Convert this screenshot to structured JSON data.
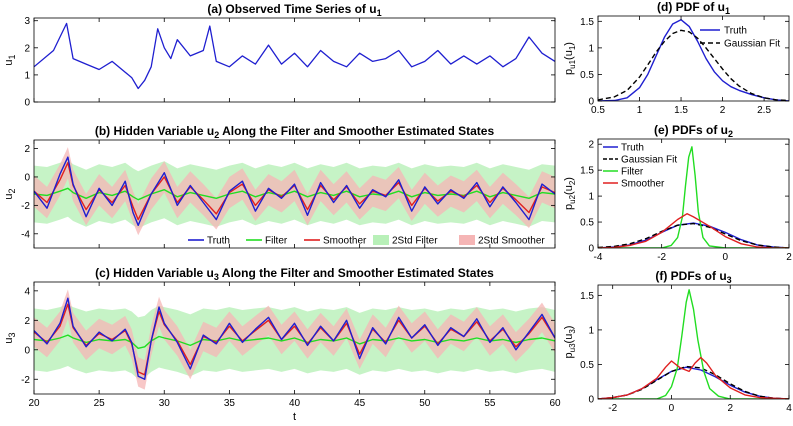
{
  "colors": {
    "truth": "#1f1fd0",
    "filter": "#22dd22",
    "smoother": "#e02020",
    "gauss": "#000000",
    "band_filter": "#b8f0b8",
    "band_smoother": "#f5b5b5"
  },
  "chart_data": [
    {
      "id": "a",
      "type": "line",
      "title": "(a) Observed Time Series of u",
      "title_sub": "1",
      "xlabel": "",
      "ylabel": "u",
      "ylabel_sub": "1",
      "xlim": [
        20,
        60
      ],
      "ylim": [
        0,
        3.1
      ],
      "xticks": [],
      "yticks": [
        0,
        1,
        2,
        3
      ],
      "series": [
        {
          "name": "Truth",
          "color": "#1f1fd0",
          "x": [
            20,
            21.5,
            22,
            22.5,
            23,
            24,
            25,
            26,
            27,
            27.5,
            28,
            28.5,
            29,
            29.5,
            30,
            30.5,
            31,
            32,
            33,
            33.5,
            34,
            35,
            36,
            37,
            38,
            39,
            40,
            41,
            42,
            43,
            44,
            45,
            46,
            47,
            48,
            49,
            50,
            51,
            52,
            53,
            54,
            55,
            56,
            57,
            58,
            59,
            60
          ],
          "y": [
            1.3,
            1.9,
            2.4,
            2.9,
            1.6,
            1.4,
            1.2,
            1.5,
            1.1,
            0.9,
            0.5,
            0.8,
            1.3,
            2.7,
            2.0,
            1.6,
            2.3,
            1.7,
            1.9,
            2.8,
            1.5,
            1.3,
            1.7,
            1.4,
            2.1,
            1.4,
            1.8,
            1.3,
            1.9,
            1.5,
            1.3,
            1.8,
            1.5,
            1.6,
            1.9,
            1.3,
            1.5,
            1.9,
            1.4,
            1.7,
            1.4,
            1.7,
            1.3,
            1.6,
            2.4,
            1.8,
            1.5
          ]
        }
      ]
    },
    {
      "id": "b",
      "type": "line",
      "title": "(b) Hidden Variable u",
      "title_sub": "2",
      "title_rest": " Along the Filter and Smoother Estimated States",
      "xlabel": "",
      "ylabel": "u",
      "ylabel_sub": "2",
      "xlim": [
        20,
        60
      ],
      "ylim": [
        -5,
        2.6
      ],
      "xticks": [],
      "yticks": [
        -4,
        -2,
        0,
        2
      ],
      "legend": [
        "Truth",
        "Filter",
        "Smoother",
        "2Std Filter",
        "2Std Smoother"
      ],
      "x": [
        20,
        21,
        22,
        22.6,
        23,
        24,
        25,
        26,
        27,
        27.6,
        28,
        29,
        30,
        31,
        32,
        33,
        34,
        35,
        36,
        37,
        38,
        39,
        40,
        41,
        42,
        43,
        44,
        45,
        46,
        47,
        48,
        49,
        50,
        51,
        52,
        53,
        54,
        55,
        56,
        57,
        58,
        59,
        60
      ],
      "series": [
        {
          "name": "Truth",
          "color": "#1f1fd0",
          "y": [
            -1.0,
            -2.2,
            0.2,
            1.4,
            -0.5,
            -2.8,
            -0.8,
            -2.0,
            -0.3,
            -2.5,
            -3.4,
            -1.2,
            0.3,
            -2.0,
            -0.6,
            -1.8,
            -3.0,
            -1.0,
            -0.3,
            -2.4,
            -0.8,
            -1.5,
            -0.5,
            -2.7,
            -0.4,
            -1.8,
            -0.6,
            -2.2,
            -0.9,
            -1.4,
            -0.2,
            -2.4,
            -0.7,
            -1.9,
            -0.9,
            -1.5,
            -0.4,
            -2.1,
            -0.7,
            -1.8,
            -3.0,
            -0.5,
            -1.2
          ]
        },
        {
          "name": "Filter",
          "color": "#22dd22",
          "y": [
            -1.2,
            -1.3,
            -1.0,
            -0.8,
            -1.1,
            -1.5,
            -1.1,
            -1.3,
            -1.0,
            -1.4,
            -1.6,
            -1.2,
            -0.9,
            -1.4,
            -1.1,
            -1.3,
            -1.5,
            -1.2,
            -1.0,
            -1.4,
            -1.1,
            -1.3,
            -1.0,
            -1.4,
            -1.1,
            -1.3,
            -1.0,
            -1.4,
            -1.2,
            -1.3,
            -1.0,
            -1.4,
            -1.1,
            -1.3,
            -1.2,
            -1.3,
            -1.0,
            -1.4,
            -1.1,
            -1.3,
            -1.5,
            -1.1,
            -1.2
          ]
        },
        {
          "name": "Smoother",
          "color": "#e02020",
          "y": [
            -1.0,
            -1.8,
            -0.2,
            1.0,
            -0.6,
            -2.3,
            -0.9,
            -1.8,
            -0.6,
            -2.1,
            -3.0,
            -1.2,
            0.0,
            -1.8,
            -0.7,
            -1.6,
            -2.6,
            -1.1,
            -0.5,
            -2.0,
            -0.9,
            -1.4,
            -0.6,
            -2.3,
            -0.6,
            -1.6,
            -0.7,
            -1.9,
            -1.0,
            -1.3,
            -0.4,
            -2.0,
            -0.8,
            -1.7,
            -1.0,
            -1.4,
            -0.6,
            -1.8,
            -0.8,
            -1.6,
            -2.5,
            -0.7,
            -1.1
          ]
        }
      ],
      "bands": [
        {
          "name": "2Std Filter",
          "color": "#b8f0b8",
          "center": "Filter",
          "half_width": 2.0
        },
        {
          "name": "2Std Smoother",
          "color": "#f5b5b5",
          "center": "Smoother",
          "half_width": 1.1
        }
      ]
    },
    {
      "id": "c",
      "type": "line",
      "title": "(c) Hidden Variable u",
      "title_sub": "3",
      "title_rest": " Along the Filter and Smoother Estimated States",
      "xlabel": "t",
      "ylabel": "u",
      "ylabel_sub": "3",
      "xlim": [
        20,
        60
      ],
      "ylim": [
        -3,
        4.6
      ],
      "xticks": [
        20,
        25,
        30,
        35,
        40,
        45,
        50,
        55,
        60
      ],
      "yticks": [
        -2,
        0,
        2,
        4
      ],
      "x": [
        20,
        21,
        22,
        22.6,
        23,
        24,
        25,
        26,
        27,
        27.5,
        28,
        28.5,
        29,
        29.6,
        30,
        31,
        32,
        33,
        34,
        35,
        36,
        37,
        38,
        39,
        40,
        41,
        42,
        43,
        44,
        45,
        46,
        47,
        48,
        49,
        50,
        51,
        52,
        53,
        54,
        55,
        56,
        57,
        58,
        59,
        60
      ],
      "series": [
        {
          "name": "Truth",
          "color": "#1f1fd0",
          "y": [
            1.3,
            0.4,
            1.8,
            3.5,
            1.6,
            0.2,
            1.2,
            0.6,
            1.4,
            0.5,
            -1.8,
            -2.0,
            0.6,
            2.9,
            1.8,
            0.5,
            -1.3,
            1.0,
            0.4,
            1.8,
            0.5,
            1.4,
            2.2,
            0.7,
            1.8,
            0.3,
            1.6,
            0.6,
            2.0,
            -0.6,
            1.5,
            0.4,
            2.2,
            0.8,
            1.7,
            0.3,
            1.5,
            0.9,
            2.1,
            0.5,
            1.5,
            0.0,
            1.2,
            2.4,
            0.8
          ]
        },
        {
          "name": "Filter",
          "color": "#22dd22",
          "y": [
            0.7,
            0.6,
            0.8,
            1.0,
            0.8,
            0.5,
            0.7,
            0.6,
            0.7,
            0.5,
            0.1,
            0.2,
            0.6,
            0.9,
            0.8,
            0.6,
            0.3,
            0.7,
            0.6,
            0.8,
            0.6,
            0.7,
            0.8,
            0.6,
            0.8,
            0.5,
            0.7,
            0.6,
            0.8,
            0.4,
            0.7,
            0.6,
            0.8,
            0.6,
            0.7,
            0.5,
            0.7,
            0.6,
            0.8,
            0.6,
            0.7,
            0.5,
            0.7,
            0.8,
            0.6
          ]
        },
        {
          "name": "Smoother",
          "color": "#e02020",
          "y": [
            1.2,
            0.5,
            1.6,
            3.1,
            1.5,
            0.3,
            1.1,
            0.7,
            1.3,
            0.4,
            -1.5,
            -1.7,
            0.6,
            2.6,
            1.7,
            0.6,
            -1.0,
            0.9,
            0.5,
            1.6,
            0.6,
            1.3,
            2.0,
            0.7,
            1.6,
            0.4,
            1.5,
            0.6,
            1.8,
            -0.3,
            1.4,
            0.5,
            2.0,
            0.8,
            1.6,
            0.4,
            1.4,
            0.9,
            1.9,
            0.6,
            1.4,
            0.2,
            1.1,
            2.2,
            0.8
          ]
        }
      ],
      "bands": [
        {
          "name": "2Std Filter",
          "color": "#b8f0b8",
          "center": "Filter",
          "half_width": 2.1
        },
        {
          "name": "2Std Smoother",
          "color": "#f5b5b5",
          "center": "Smoother",
          "half_width": 1.0
        }
      ]
    },
    {
      "id": "d",
      "type": "line",
      "title": "(d) PDF of u",
      "title_sub": "1",
      "xlabel": "",
      "ylabel": "p",
      "ylabel_sub": "u1",
      "ylabel_arg": "(u",
      "xlim": [
        0.5,
        2.8
      ],
      "ylim": [
        0,
        1.6
      ],
      "xticks": [
        0.5,
        1,
        1.5,
        2,
        2.5
      ],
      "xticklabels": [
        "0.5",
        "1",
        "1.5",
        "2",
        "2.5"
      ],
      "yticks": [
        0,
        0.5,
        1,
        1.5
      ],
      "yticklabels": [
        "0",
        "0.5",
        "1",
        "1.5"
      ],
      "legend": [
        "Truth",
        "Gaussian Fit"
      ],
      "series": [
        {
          "name": "Truth",
          "color": "#1f1fd0",
          "style": "solid",
          "x": [
            0.5,
            0.7,
            0.85,
            1.0,
            1.1,
            1.2,
            1.3,
            1.4,
            1.5,
            1.6,
            1.7,
            1.8,
            1.9,
            2.0,
            2.1,
            2.2,
            2.35,
            2.5,
            2.65,
            2.8
          ],
          "y": [
            0.0,
            0.01,
            0.06,
            0.25,
            0.5,
            0.85,
            1.2,
            1.45,
            1.53,
            1.4,
            1.12,
            0.8,
            0.55,
            0.38,
            0.27,
            0.2,
            0.12,
            0.06,
            0.02,
            0.0
          ]
        },
        {
          "name": "Gaussian Fit",
          "color": "#000000",
          "style": "dashed",
          "x": [
            0.5,
            0.7,
            0.85,
            1.0,
            1.1,
            1.2,
            1.3,
            1.4,
            1.5,
            1.6,
            1.7,
            1.8,
            1.9,
            2.0,
            2.1,
            2.2,
            2.35,
            2.5,
            2.65,
            2.8
          ],
          "y": [
            0.02,
            0.08,
            0.2,
            0.45,
            0.68,
            0.92,
            1.12,
            1.27,
            1.33,
            1.3,
            1.18,
            1.0,
            0.8,
            0.6,
            0.42,
            0.28,
            0.14,
            0.06,
            0.02,
            0.01
          ]
        }
      ]
    },
    {
      "id": "e",
      "type": "line",
      "title": "(e) PDFs of u",
      "title_sub": "2",
      "xlabel": "",
      "ylabel": "p",
      "ylabel_sub": "u2",
      "ylabel_arg": "(u",
      "xlim": [
        -4,
        2
      ],
      "ylim": [
        0,
        2.1
      ],
      "xticks": [
        -4,
        -2,
        0,
        2
      ],
      "xticklabels": [
        "-4",
        "-2",
        "0",
        "2"
      ],
      "yticks": [
        0,
        0.5,
        1,
        1.5,
        2
      ],
      "yticklabels": [
        "0",
        "0.5",
        "1",
        "1.5",
        "2"
      ],
      "legend": [
        "Truth",
        "Gaussian Fit",
        "Filter",
        "Smoother"
      ],
      "series": [
        {
          "name": "Truth",
          "color": "#1f1fd0",
          "style": "solid",
          "x": [
            -4,
            -3.5,
            -3,
            -2.5,
            -2,
            -1.5,
            -1,
            -0.5,
            0,
            0.5,
            1,
            1.5,
            2
          ],
          "y": [
            0.0,
            0.02,
            0.06,
            0.15,
            0.3,
            0.44,
            0.48,
            0.42,
            0.3,
            0.16,
            0.06,
            0.02,
            0.0
          ]
        },
        {
          "name": "Gaussian Fit",
          "color": "#000000",
          "style": "dashed",
          "x": [
            -4,
            -3.5,
            -3,
            -2.5,
            -2,
            -1.5,
            -1,
            -0.5,
            0,
            0.5,
            1,
            1.5,
            2
          ],
          "y": [
            0.01,
            0.03,
            0.08,
            0.18,
            0.32,
            0.44,
            0.47,
            0.4,
            0.27,
            0.14,
            0.06,
            0.02,
            0.0
          ]
        },
        {
          "name": "Filter",
          "color": "#22dd22",
          "style": "solid",
          "x": [
            -4,
            -2,
            -1.7,
            -1.5,
            -1.35,
            -1.25,
            -1.15,
            -1.05,
            -0.95,
            -0.85,
            -0.7,
            -0.5,
            0,
            2
          ],
          "y": [
            0.0,
            0.0,
            0.05,
            0.2,
            0.6,
            1.2,
            1.75,
            1.95,
            1.4,
            0.7,
            0.2,
            0.04,
            0.0,
            0.0
          ]
        },
        {
          "name": "Smoother",
          "color": "#e02020",
          "style": "solid",
          "x": [
            -4,
            -3.5,
            -3,
            -2.5,
            -2,
            -1.5,
            -1.2,
            -1,
            -0.5,
            0,
            0.5,
            1,
            1.5,
            2
          ],
          "y": [
            0.0,
            0.01,
            0.05,
            0.13,
            0.3,
            0.55,
            0.66,
            0.6,
            0.42,
            0.22,
            0.08,
            0.02,
            0.0,
            0.0
          ]
        }
      ]
    },
    {
      "id": "f",
      "type": "line",
      "title": "(f) PDFs of u",
      "title_sub": "3",
      "xlabel": "",
      "ylabel": "p",
      "ylabel_sub": "u3",
      "ylabel_arg": "(u",
      "xlim": [
        -2.5,
        4
      ],
      "ylim": [
        0,
        1.65
      ],
      "xticks": [
        -2,
        0,
        2,
        4
      ],
      "xticklabels": [
        "-2",
        "0",
        "2",
        "4"
      ],
      "yticks": [
        0,
        0.5,
        1,
        1.5
      ],
      "yticklabels": [
        "0",
        "0.5",
        "1",
        "1.5"
      ],
      "series": [
        {
          "name": "Truth",
          "color": "#1f1fd0",
          "style": "solid",
          "x": [
            -2.5,
            -2,
            -1.5,
            -1,
            -0.5,
            0,
            0.5,
            1,
            1.5,
            2,
            2.5,
            3,
            3.5,
            4
          ],
          "y": [
            0.0,
            0.02,
            0.06,
            0.15,
            0.28,
            0.4,
            0.46,
            0.42,
            0.32,
            0.2,
            0.1,
            0.04,
            0.01,
            0.0
          ]
        },
        {
          "name": "Gaussian Fit",
          "color": "#000000",
          "style": "dashed",
          "x": [
            -2.5,
            -2,
            -1.5,
            -1,
            -0.5,
            0,
            0.5,
            1,
            1.5,
            2,
            2.5,
            3,
            3.5,
            4
          ],
          "y": [
            0.0,
            0.02,
            0.06,
            0.14,
            0.27,
            0.4,
            0.47,
            0.45,
            0.35,
            0.22,
            0.11,
            0.04,
            0.01,
            0.0
          ]
        },
        {
          "name": "Filter",
          "color": "#22dd22",
          "style": "solid",
          "x": [
            -2.5,
            -0.5,
            -0.2,
            0,
            0.2,
            0.35,
            0.5,
            0.6,
            0.75,
            0.9,
            1.1,
            1.3,
            1.6,
            2,
            4
          ],
          "y": [
            0.0,
            0.0,
            0.05,
            0.18,
            0.45,
            0.9,
            1.4,
            1.58,
            1.3,
            0.85,
            0.4,
            0.15,
            0.04,
            0.0,
            0.0
          ]
        },
        {
          "name": "Smoother",
          "color": "#e02020",
          "style": "solid",
          "x": [
            -2.5,
            -2,
            -1.5,
            -1,
            -0.5,
            -0.2,
            0,
            0.3,
            0.6,
            0.8,
            1,
            1.2,
            1.5,
            2,
            2.5,
            3,
            4
          ],
          "y": [
            0.0,
            0.02,
            0.06,
            0.15,
            0.3,
            0.46,
            0.55,
            0.45,
            0.4,
            0.52,
            0.6,
            0.52,
            0.34,
            0.16,
            0.06,
            0.02,
            0.0
          ]
        }
      ]
    }
  ]
}
